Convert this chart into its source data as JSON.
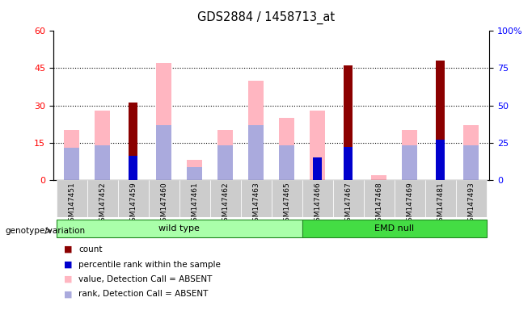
{
  "title": "GDS2884 / 1458713_at",
  "samples": [
    "GSM147451",
    "GSM147452",
    "GSM147459",
    "GSM147460",
    "GSM147461",
    "GSM147462",
    "GSM147463",
    "GSM147465",
    "GSM147466",
    "GSM147467",
    "GSM147468",
    "GSM147469",
    "GSM147481",
    "GSM147493"
  ],
  "groups": [
    "wild type",
    "wild type",
    "wild type",
    "wild type",
    "wild type",
    "wild type",
    "wild type",
    "wild type",
    "EMD null",
    "EMD null",
    "EMD null",
    "EMD null",
    "EMD null",
    "EMD null"
  ],
  "count_values": [
    0,
    0,
    31,
    0,
    0,
    0,
    0,
    0,
    0,
    46,
    0,
    0,
    48,
    0
  ],
  "percentile_rank": [
    0,
    0,
    16,
    0,
    0,
    0,
    0,
    0,
    15,
    22,
    0,
    0,
    27,
    0
  ],
  "absent_value": [
    20,
    28,
    0,
    47,
    8,
    20,
    40,
    25,
    28,
    0,
    2,
    20,
    0,
    22
  ],
  "absent_rank": [
    13,
    14,
    0,
    22,
    5,
    14,
    22,
    14,
    0,
    0,
    0,
    14,
    0,
    14
  ],
  "color_count": "#8B0000",
  "color_percentile": "#0000CD",
  "color_absent_value": "#FFB6C1",
  "color_absent_rank": "#AAAADD",
  "ylim_left": [
    0,
    60
  ],
  "ylim_right": [
    0,
    100
  ],
  "yticks_left": [
    0,
    15,
    30,
    45,
    60
  ],
  "yticks_right": [
    0,
    25,
    50,
    75,
    100
  ],
  "ytick_labels_right": [
    "0",
    "25",
    "50",
    "75",
    "100%"
  ],
  "genotype_label": "genotype/variation",
  "group_wt_color": "#aaffaa",
  "group_emd_color": "#44dd44",
  "legend": [
    {
      "label": "count",
      "color": "#8B0000"
    },
    {
      "label": "percentile rank within the sample",
      "color": "#0000CD"
    },
    {
      "label": "value, Detection Call = ABSENT",
      "color": "#FFB6C1"
    },
    {
      "label": "rank, Detection Call = ABSENT",
      "color": "#AAAADD"
    }
  ],
  "bar_width": 0.5,
  "ticklabel_bg": "#cccccc"
}
